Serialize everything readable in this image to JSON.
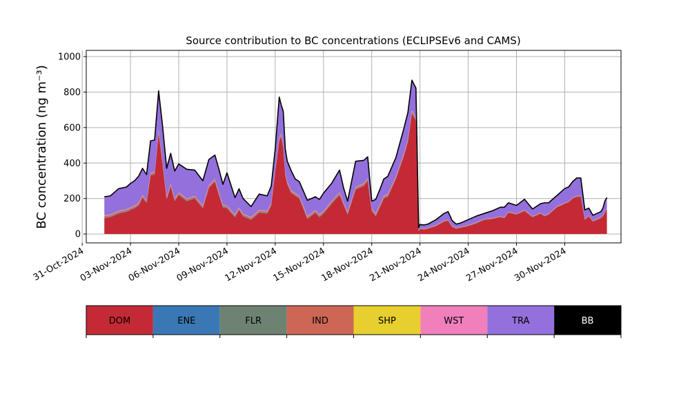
{
  "chart_data": {
    "type": "area",
    "stacked": true,
    "title": "Source contribution to BC concentrations (ECLIPSEv6 and CAMS)",
    "ylabel": "BC concentration (ng m⁻³)",
    "xlabel": "",
    "grid": true,
    "ylim": [
      -50,
      1035
    ],
    "xlim": [
      "2024-10-31T06:00",
      "2024-12-03T12:00"
    ],
    "yticks": [
      0,
      200,
      400,
      600,
      800,
      1000
    ],
    "xticks": [
      "2024-10-31",
      "2024-11-03",
      "2024-11-06",
      "2024-11-09",
      "2024-11-12",
      "2024-11-15",
      "2024-11-18",
      "2024-11-21",
      "2024-11-24",
      "2024-11-27",
      "2024-11-30"
    ],
    "xticklabels": [
      "31-Oct-2024",
      "03-Nov-2024",
      "06-Nov-2024",
      "09-Nov-2024",
      "12-Nov-2024",
      "15-Nov-2024",
      "18-Nov-2024",
      "21-Nov-2024",
      "24-Nov-2024",
      "27-Nov-2024",
      "30-Nov-2024"
    ],
    "x": [
      "2024-11-01T09:00",
      "2024-11-01T18:00",
      "2024-11-02T06:00",
      "2024-11-02T18:00",
      "2024-11-03T00:00",
      "2024-11-03T06:00",
      "2024-11-03T12:00",
      "2024-11-03T18:00",
      "2024-11-04T00:00",
      "2024-11-04T06:00",
      "2024-11-04T12:00",
      "2024-11-04T18:00",
      "2024-11-05T00:00",
      "2024-11-05T06:00",
      "2024-11-05T12:00",
      "2024-11-05T18:00",
      "2024-11-06T00:00",
      "2024-11-06T12:00",
      "2024-11-07T00:00",
      "2024-11-07T12:00",
      "2024-11-07T21:00",
      "2024-11-08T06:00",
      "2024-11-08T12:00",
      "2024-11-08T18:00",
      "2024-11-09T00:00",
      "2024-11-09T12:00",
      "2024-11-09T18:00",
      "2024-11-10T00:00",
      "2024-11-10T12:00",
      "2024-11-11T00:00",
      "2024-11-11T12:00",
      "2024-11-11T18:00",
      "2024-11-12T00:00",
      "2024-11-12T06:00",
      "2024-11-12T09:00",
      "2024-11-12T12:00",
      "2024-11-12T15:00",
      "2024-11-12T18:00",
      "2024-11-13T00:00",
      "2024-11-13T06:00",
      "2024-11-13T12:00",
      "2024-11-14T00:00",
      "2024-11-14T12:00",
      "2024-11-14T18:00",
      "2024-11-15T00:00",
      "2024-11-15T12:00",
      "2024-11-16T00:00",
      "2024-11-16T06:00",
      "2024-11-16T12:00",
      "2024-11-17T00:00",
      "2024-11-17T12:00",
      "2024-11-17T18:00",
      "2024-11-18T00:00",
      "2024-11-18T06:00",
      "2024-11-18T12:00",
      "2024-11-18T18:00",
      "2024-11-19T00:00",
      "2024-11-19T12:00",
      "2024-11-20T00:00",
      "2024-11-20T06:00",
      "2024-11-20T12:00",
      "2024-11-20T18:00",
      "2024-11-20T22:00",
      "2024-11-21T00:00",
      "2024-11-21T06:00",
      "2024-11-21T12:00",
      "2024-11-22T00:00",
      "2024-11-22T12:00",
      "2024-11-22T18:00",
      "2024-11-23T00:00",
      "2024-11-23T06:00",
      "2024-11-23T12:00",
      "2024-11-24T00:00",
      "2024-11-24T12:00",
      "2024-11-25T00:00",
      "2024-11-25T12:00",
      "2024-11-26T00:00",
      "2024-11-26T06:00",
      "2024-11-26T12:00",
      "2024-11-27T00:00",
      "2024-11-27T12:00",
      "2024-11-28T00:00",
      "2024-11-28T12:00",
      "2024-11-28T18:00",
      "2024-11-29T00:00",
      "2024-11-29T06:00",
      "2024-11-29T12:00",
      "2024-11-29T18:00",
      "2024-11-30T00:00",
      "2024-11-30T06:00",
      "2024-11-30T12:00",
      "2024-11-30T18:00",
      "2024-12-01T00:00",
      "2024-12-01T06:00",
      "2024-12-01T12:00",
      "2024-12-01T18:00",
      "2024-12-02T00:00",
      "2024-12-02T06:00",
      "2024-12-02T09:00",
      "2024-12-02T12:00",
      "2024-12-02T15:00"
    ],
    "series": [
      {
        "name": "DOM",
        "color": "#c42a35",
        "values": [
          90,
          95,
          115,
          125,
          135,
          145,
          160,
          205,
          175,
          330,
          335,
          570,
          390,
          195,
          270,
          185,
          220,
          185,
          200,
          145,
          260,
          295,
          220,
          150,
          145,
          95,
          135,
          100,
          80,
          120,
          115,
          160,
          350,
          525,
          550,
          485,
          330,
          280,
          230,
          215,
          200,
          85,
          120,
          95,
          115,
          170,
          220,
          165,
          110,
          250,
          270,
          300,
          130,
          100,
          150,
          200,
          210,
          310,
          440,
          520,
          680,
          640,
          15,
          28,
          25,
          30,
          45,
          70,
          75,
          40,
          30,
          35,
          45,
          60,
          80,
          85,
          95,
          90,
          120,
          110,
          130,
          95,
          115,
          100,
          110,
          130,
          150,
          160,
          170,
          180,
          200,
          210,
          210,
          80,
          100,
          70,
          80,
          90,
          100,
          120,
          140
        ]
      },
      {
        "name": "ENE",
        "color": "#3a78b5",
        "values": [
          2,
          2,
          2,
          2,
          2,
          2,
          2,
          2,
          2,
          2,
          2,
          2,
          2,
          2,
          2,
          2,
          2,
          2,
          2,
          2,
          2,
          2,
          2,
          2,
          2,
          2,
          2,
          2,
          2,
          2,
          2,
          2,
          2,
          2,
          2,
          2,
          2,
          2,
          2,
          2,
          2,
          2,
          2,
          2,
          2,
          2,
          2,
          2,
          2,
          2,
          2,
          2,
          2,
          2,
          2,
          2,
          2,
          2,
          2,
          2,
          2,
          2,
          1,
          1,
          1,
          1,
          1,
          1,
          1,
          1,
          1,
          1,
          1,
          1,
          1,
          1,
          1,
          1,
          1,
          1,
          1,
          1,
          1,
          1,
          1,
          1,
          1,
          1,
          1,
          1,
          1,
          1,
          1,
          1,
          1,
          1,
          1,
          1,
          1,
          1,
          1
        ]
      },
      {
        "name": "FLR",
        "color": "#6e8272",
        "values": [
          3,
          3,
          3,
          3,
          3,
          3,
          3,
          3,
          3,
          3,
          3,
          3,
          3,
          3,
          3,
          3,
          3,
          3,
          3,
          3,
          3,
          3,
          3,
          3,
          3,
          3,
          3,
          3,
          3,
          3,
          3,
          3,
          3,
          3,
          3,
          3,
          3,
          3,
          3,
          3,
          3,
          3,
          3,
          3,
          3,
          3,
          3,
          3,
          3,
          3,
          3,
          3,
          3,
          3,
          3,
          3,
          3,
          3,
          3,
          3,
          3,
          3,
          1,
          1,
          1,
          1,
          1,
          1,
          1,
          1,
          1,
          1,
          1,
          1,
          1,
          1,
          1,
          1,
          1,
          1,
          1,
          1,
          1,
          1,
          1,
          1,
          1,
          1,
          1,
          1,
          1,
          1,
          1,
          1,
          1,
          1,
          1,
          1,
          1,
          1,
          1
        ]
      },
      {
        "name": "IND",
        "color": "#cd6655",
        "values": [
          7,
          7,
          7,
          7,
          7,
          7,
          7,
          7,
          7,
          7,
          7,
          8,
          7,
          7,
          7,
          7,
          7,
          7,
          7,
          7,
          7,
          7,
          7,
          7,
          7,
          7,
          7,
          7,
          7,
          7,
          7,
          7,
          7,
          8,
          8,
          8,
          7,
          7,
          7,
          7,
          7,
          7,
          7,
          7,
          7,
          7,
          7,
          7,
          7,
          7,
          7,
          7,
          7,
          7,
          7,
          7,
          7,
          7,
          7,
          7,
          8,
          8,
          3,
          3,
          3,
          3,
          3,
          3,
          3,
          3,
          3,
          3,
          3,
          3,
          3,
          3,
          3,
          3,
          3,
          3,
          3,
          3,
          3,
          3,
          3,
          3,
          3,
          3,
          3,
          3,
          3,
          3,
          3,
          3,
          3,
          3,
          3,
          3,
          3,
          3,
          3
        ]
      },
      {
        "name": "SHP",
        "color": "#e6cf2e",
        "values": [
          1,
          1,
          1,
          1,
          1,
          1,
          1,
          1,
          1,
          1,
          1,
          1,
          1,
          1,
          1,
          1,
          1,
          1,
          1,
          1,
          1,
          1,
          1,
          1,
          1,
          1,
          1,
          1,
          1,
          1,
          1,
          1,
          1,
          1,
          1,
          1,
          1,
          1,
          1,
          1,
          1,
          1,
          1,
          1,
          1,
          1,
          1,
          1,
          1,
          1,
          1,
          1,
          1,
          1,
          1,
          1,
          1,
          1,
          1,
          1,
          1,
          1,
          0,
          0,
          0,
          0,
          0,
          0,
          0,
          0,
          0,
          0,
          0,
          0,
          0,
          0,
          0,
          0,
          0,
          0,
          0,
          0,
          0,
          0,
          0,
          0,
          0,
          0,
          0,
          0,
          0,
          0,
          0,
          0,
          0,
          0,
          0,
          0,
          0,
          0,
          0
        ]
      },
      {
        "name": "WST",
        "color": "#f07fbc",
        "values": [
          2,
          2,
          2,
          2,
          2,
          2,
          2,
          2,
          2,
          2,
          2,
          3,
          2,
          2,
          2,
          2,
          2,
          2,
          2,
          2,
          2,
          2,
          2,
          2,
          2,
          2,
          2,
          2,
          2,
          2,
          2,
          2,
          2,
          3,
          3,
          3,
          2,
          2,
          2,
          2,
          2,
          2,
          2,
          2,
          2,
          2,
          2,
          2,
          2,
          2,
          2,
          2,
          2,
          2,
          2,
          2,
          2,
          2,
          2,
          2,
          3,
          3,
          1,
          1,
          1,
          1,
          1,
          1,
          1,
          1,
          1,
          1,
          1,
          1,
          1,
          1,
          1,
          1,
          1,
          1,
          1,
          1,
          1,
          1,
          1,
          1,
          1,
          1,
          1,
          1,
          1,
          1,
          1,
          1,
          1,
          1,
          1,
          1,
          1,
          1,
          1
        ]
      },
      {
        "name": "TRA",
        "color": "#9370db",
        "values": [
          105,
          105,
          125,
          125,
          135,
          140,
          150,
          150,
          145,
          180,
          180,
          220,
          200,
          160,
          170,
          155,
          160,
          165,
          145,
          140,
          145,
          135,
          130,
          115,
          185,
          95,
          105,
          85,
          60,
          90,
          85,
          95,
          115,
          230,
          160,
          190,
          135,
          115,
          110,
          80,
          80,
          90,
          75,
          85,
          100,
          100,
          125,
          80,
          60,
          145,
          130,
          120,
          40,
          80,
          85,
          95,
          100,
          105,
          140,
          150,
          170,
          165,
          15,
          20,
          20,
          20,
          30,
          40,
          45,
          30,
          20,
          20,
          30,
          35,
          30,
          40,
          50,
          55,
          50,
          45,
          60,
          40,
          50,
          70,
          60,
          60,
          60,
          70,
          80,
          80,
          90,
          100,
          100,
          50,
          40,
          30,
          30,
          30,
          40,
          60,
          60
        ]
      },
      {
        "name": "BB",
        "color": "#000000",
        "values": [
          0,
          0,
          0,
          0,
          0,
          0,
          0,
          0,
          0,
          0,
          0,
          0,
          0,
          0,
          0,
          0,
          0,
          0,
          0,
          0,
          0,
          0,
          0,
          0,
          0,
          0,
          0,
          0,
          0,
          0,
          0,
          0,
          0,
          0,
          0,
          0,
          0,
          0,
          0,
          0,
          0,
          0,
          0,
          0,
          0,
          0,
          0,
          0,
          0,
          0,
          0,
          0,
          0,
          0,
          0,
          0,
          0,
          0,
          0,
          0,
          0,
          0,
          0,
          0,
          0,
          0,
          0,
          0,
          0,
          0,
          0,
          0,
          0,
          0,
          0,
          0,
          0,
          0,
          0,
          0,
          0,
          0,
          0,
          0,
          0,
          0,
          0,
          0,
          0,
          0,
          0,
          0,
          0,
          0,
          0,
          0,
          0,
          0,
          0,
          0,
          0
        ]
      }
    ],
    "legend": {
      "placement": "below",
      "entries": [
        {
          "label": "DOM",
          "color": "#c42a35",
          "text_color": "#000000"
        },
        {
          "label": "ENE",
          "color": "#3a78b5",
          "text_color": "#000000"
        },
        {
          "label": "FLR",
          "color": "#6e8272",
          "text_color": "#000000"
        },
        {
          "label": "IND",
          "color": "#cd6655",
          "text_color": "#000000"
        },
        {
          "label": "SHP",
          "color": "#e6cf2e",
          "text_color": "#000000"
        },
        {
          "label": "WST",
          "color": "#f07fbc",
          "text_color": "#000000"
        },
        {
          "label": "TRA",
          "color": "#9370db",
          "text_color": "#000000"
        },
        {
          "label": "BB",
          "color": "#000000",
          "text_color": "#ffffff"
        }
      ]
    }
  }
}
